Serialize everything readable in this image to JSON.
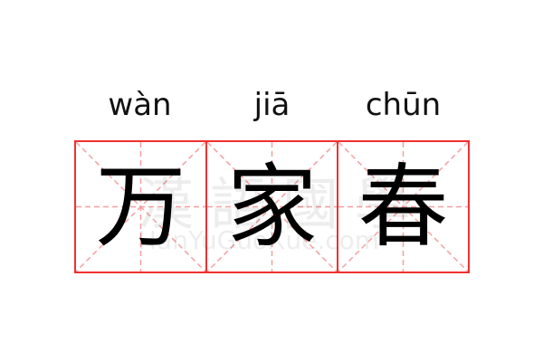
{
  "pinyin": [
    "wàn",
    "jiā",
    "chūn"
  ],
  "characters": [
    "万",
    "家",
    "春"
  ],
  "watermark": {
    "chinese": "漢語國學",
    "latin": "HanYuGuoXue.com"
  },
  "colors": {
    "border": "#f03030",
    "guide": "#f5a0a0"
  }
}
